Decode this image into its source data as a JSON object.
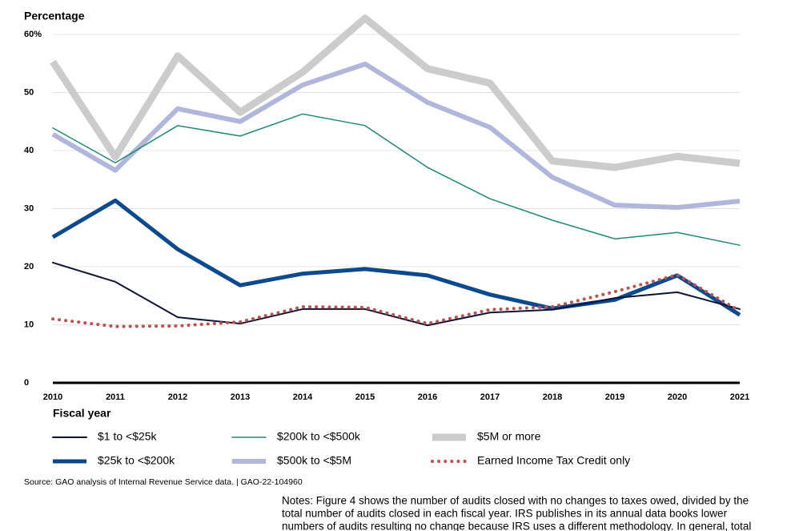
{
  "chart_data": {
    "type": "line",
    "y_axis_label": "Percentage",
    "x_axis_label": "Fiscal year",
    "x": [
      2010,
      2011,
      2012,
      2013,
      2014,
      2015,
      2016,
      2017,
      2018,
      2019,
      2020,
      2021
    ],
    "xlim": [
      2010,
      2021
    ],
    "xticks": [
      2010,
      2011,
      2012,
      2013,
      2014,
      2015,
      2016,
      2017,
      2018,
      2019,
      2020,
      2021
    ],
    "ylim": [
      0,
      60
    ],
    "yticks": [
      0,
      10,
      20,
      30,
      40,
      50,
      {
        "value": 60,
        "label": "60%"
      }
    ],
    "grid": true,
    "series": [
      {
        "name": "$1 to <$25k",
        "color": "#0f1437",
        "values": [
          20.7,
          17.4,
          11.3,
          10.2,
          12.7,
          12.7,
          9.9,
          12.1,
          12.6,
          14.6,
          15.6,
          12.7
        ]
      },
      {
        "name": "$200k to <$500k",
        "color": "#1e8a78",
        "values": [
          43.9,
          37.9,
          44.3,
          42.5,
          46.3,
          44.3,
          37.1,
          31.7,
          28.0,
          24.8,
          25.9,
          23.7
        ]
      },
      {
        "name": "$5M or more",
        "color": "#cccccc",
        "values": [
          55.3,
          38.9,
          56.3,
          46.6,
          53.5,
          62.8,
          54.1,
          51.6,
          38.2,
          37.1,
          39.0,
          37.8
        ]
      },
      {
        "name": "$25k to <$200k",
        "color": "#0b4a8f",
        "values": [
          25.1,
          31.4,
          23.0,
          16.8,
          18.8,
          19.6,
          18.5,
          15.2,
          12.8,
          14.3,
          18.5,
          11.7
        ]
      },
      {
        "name": "$500k to <$5M",
        "color": "#b0b6dc",
        "values": [
          42.8,
          36.6,
          47.2,
          45.0,
          51.3,
          54.9,
          48.3,
          44.0,
          35.4,
          30.6,
          30.2,
          31.3
        ]
      },
      {
        "name": "Earned Income Tax Credit only",
        "color": "#c0504d",
        "values": [
          11.0,
          9.7,
          9.8,
          10.5,
          13.1,
          13.0,
          10.2,
          12.6,
          13.1,
          15.7,
          18.6,
          12.4
        ]
      }
    ],
    "source": "Source: GAO analysis of Internal Revenue Service data.  |  GAO-22-104960",
    "notes": [
      "Notes: Figure 4 shows the number of audits closed with no changes to taxes owed, divided by the",
      "total number of audits closed in each fiscal year. IRS publishes in its annual data books lower",
      "numbers of audits resulting no change because IRS uses a different methodology. In general, total"
    ]
  }
}
